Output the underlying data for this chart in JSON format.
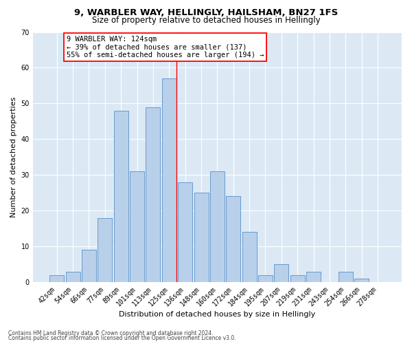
{
  "title1": "9, WARBLER WAY, HELLINGLY, HAILSHAM, BN27 1FS",
  "title2": "Size of property relative to detached houses in Hellingly",
  "xlabel": "Distribution of detached houses by size in Hellingly",
  "ylabel": "Number of detached properties",
  "categories": [
    "42sqm",
    "54sqm",
    "66sqm",
    "77sqm",
    "89sqm",
    "101sqm",
    "113sqm",
    "125sqm",
    "136sqm",
    "148sqm",
    "160sqm",
    "172sqm",
    "184sqm",
    "195sqm",
    "207sqm",
    "219sqm",
    "231sqm",
    "243sqm",
    "254sqm",
    "266sqm",
    "278sqm"
  ],
  "values": [
    2,
    3,
    9,
    18,
    48,
    31,
    49,
    57,
    28,
    25,
    31,
    24,
    14,
    2,
    5,
    2,
    3,
    0,
    3,
    1,
    0
  ],
  "bar_color": "#b8d0ea",
  "bar_edge_color": "#6699cc",
  "red_line_index": 7,
  "ylim": [
    0,
    70
  ],
  "yticks": [
    0,
    10,
    20,
    30,
    40,
    50,
    60,
    70
  ],
  "annotation_title": "9 WARBLER WAY: 124sqm",
  "annotation_line1": "← 39% of detached houses are smaller (137)",
  "annotation_line2": "55% of semi-detached houses are larger (194) →",
  "footer1": "Contains HM Land Registry data © Crown copyright and database right 2024.",
  "footer2": "Contains public sector information licensed under the Open Government Licence v3.0.",
  "plot_bg_color": "#dce9f5",
  "title1_fontsize": 9.5,
  "title2_fontsize": 8.5,
  "xlabel_fontsize": 8,
  "ylabel_fontsize": 8,
  "tick_fontsize": 7,
  "annot_fontsize": 7.5,
  "footer_fontsize": 5.5
}
